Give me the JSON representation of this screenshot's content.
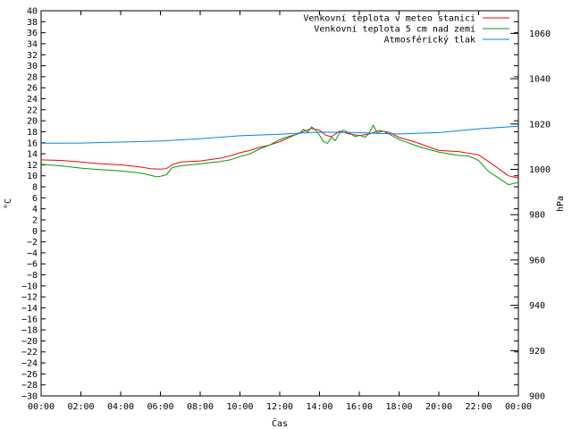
{
  "chart_data": {
    "type": "line",
    "xlabel": "Čas",
    "ylabel": "°C",
    "y2label": "hPa",
    "xlim": [
      0,
      24
    ],
    "ylim": [
      -30,
      40
    ],
    "y2lim": [
      900,
      1070
    ],
    "grid": false,
    "legend_position": "top-right",
    "x_tick_labels": [
      "00:00",
      "02:00",
      "04:00",
      "06:00",
      "08:00",
      "10:00",
      "12:00",
      "14:00",
      "16:00",
      "18:00",
      "20:00",
      "22:00",
      "00:00"
    ],
    "y_tick_labels": [
      "-30",
      "-28",
      "-26",
      "-24",
      "-22",
      "-20",
      "-18",
      "-16",
      "-14",
      "-12",
      "-10",
      "-8",
      "-6",
      "-4",
      "-2",
      "0",
      "2",
      "4",
      "6",
      "8",
      "10",
      "12",
      "14",
      "16",
      "18",
      "20",
      "22",
      "24",
      "26",
      "28",
      "30",
      "32",
      "34",
      "36",
      "38",
      "40"
    ],
    "y2_tick_labels": [
      "900",
      "920",
      "940",
      "960",
      "980",
      "1000",
      "1020",
      "1040",
      "1060"
    ],
    "series": [
      {
        "name": "Venkovní teplota v meteo stanici",
        "color": "#ff0000",
        "axis": "left",
        "x": [
          0,
          1,
          2,
          3,
          4,
          5,
          5.5,
          6,
          6.3,
          6.6,
          7,
          8,
          9,
          9.5,
          10,
          10.5,
          11,
          11.5,
          12,
          12.5,
          13,
          13.3,
          13.6,
          14,
          14.3,
          14.6,
          15,
          15.5,
          16,
          16.5,
          17,
          17.5,
          18,
          19,
          20,
          21,
          22,
          22.5,
          23,
          23.5,
          24
        ],
        "y": [
          12.9,
          12.8,
          12.5,
          12.2,
          12.0,
          11.6,
          11.3,
          11.2,
          11.3,
          12.0,
          12.5,
          12.7,
          13.2,
          13.6,
          14.2,
          14.6,
          15.2,
          15.6,
          16.2,
          17.0,
          17.8,
          18.2,
          18.6,
          18.3,
          17.4,
          17.1,
          18.1,
          17.6,
          17.3,
          17.6,
          18.2,
          17.9,
          17.0,
          15.9,
          14.6,
          14.4,
          13.8,
          12.6,
          11.3,
          10.0,
          9.6
        ]
      },
      {
        "name": "Venkovní teplota 5 cm nad zemí",
        "color": "#00a000",
        "axis": "left",
        "x": [
          0,
          1,
          2,
          3,
          4,
          5,
          5.5,
          5.8,
          6,
          6.3,
          6.6,
          7,
          8,
          9,
          9.5,
          10,
          10.5,
          11,
          11.5,
          12,
          12.5,
          13,
          13.2,
          13.4,
          13.6,
          13.8,
          14,
          14.2,
          14.4,
          14.6,
          14.8,
          15,
          15.2,
          15.5,
          15.8,
          16,
          16.3,
          16.5,
          16.7,
          16.9,
          17.2,
          17.5,
          18,
          19,
          20,
          21,
          21.5,
          22,
          22.5,
          23,
          23.5,
          24
        ],
        "y": [
          12.1,
          11.8,
          11.4,
          11.1,
          10.9,
          10.5,
          10.1,
          9.8,
          9.9,
          10.2,
          11.5,
          11.8,
          12.2,
          12.6,
          12.9,
          13.5,
          14.0,
          14.9,
          15.6,
          16.6,
          17.2,
          17.7,
          18.5,
          17.9,
          18.9,
          18.3,
          17.4,
          16.2,
          15.9,
          17.0,
          16.4,
          17.8,
          18.3,
          17.8,
          17.1,
          17.4,
          17.0,
          17.8,
          19.2,
          17.8,
          18.1,
          17.6,
          16.6,
          15.3,
          14.3,
          13.7,
          13.6,
          12.8,
          10.8,
          9.6,
          8.4,
          8.8
        ]
      },
      {
        "name": "Atmosférický tlak",
        "color": "#0080ff",
        "axis": "right",
        "x": [
          0,
          2,
          4,
          6,
          8,
          10,
          12,
          13.5,
          14,
          16,
          17,
          18,
          20,
          22,
          24
        ],
        "y": [
          1011.5,
          1011.6,
          1012.0,
          1012.5,
          1013.5,
          1014.8,
          1015.5,
          1016.2,
          1016.4,
          1016.2,
          1015.8,
          1015.6,
          1016.2,
          1017.9,
          1019.0
        ]
      }
    ]
  }
}
